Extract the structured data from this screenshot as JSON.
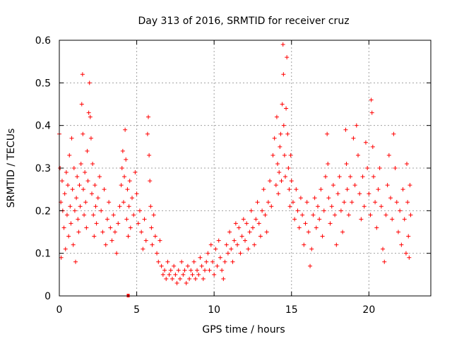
{
  "chart_data": {
    "type": "scatter",
    "title": "Day 313 of 2016, SRMTID for receiver cruz",
    "xlabel": "GPS time / hours",
    "ylabel": "SRMTID / TECUs",
    "xlim": [
      0,
      24
    ],
    "ylim": [
      0,
      0.6
    ],
    "xticks": [
      0,
      5,
      10,
      15,
      20
    ],
    "xtick_labels": [
      "0",
      "5",
      "10",
      "15",
      "20"
    ],
    "yticks": [
      0,
      0.1,
      0.2,
      0.3,
      0.4,
      0.5,
      0.6
    ],
    "ytick_labels": [
      "0",
      "0.1",
      "0.2",
      "0.3",
      "0.4",
      "0.5",
      "0.6"
    ],
    "grid": true,
    "marker": "+",
    "color": "#ff0000",
    "series": [
      {
        "name": "SRMTID",
        "points": [
          [
            0.0,
            0.38
          ],
          [
            0.05,
            0.3
          ],
          [
            0.1,
            0.22
          ],
          [
            0.12,
            0.09
          ],
          [
            0.18,
            0.27
          ],
          [
            0.22,
            0.2
          ],
          [
            0.3,
            0.16
          ],
          [
            0.35,
            0.24
          ],
          [
            0.4,
            0.11
          ],
          [
            0.45,
            0.29
          ],
          [
            0.5,
            0.19
          ],
          [
            0.55,
            0.26
          ],
          [
            0.6,
            0.14
          ],
          [
            0.65,
            0.33
          ],
          [
            0.7,
            0.21
          ],
          [
            0.75,
            0.17
          ],
          [
            0.8,
            0.37
          ],
          [
            0.85,
            0.25
          ],
          [
            0.9,
            0.12
          ],
          [
            0.95,
            0.3
          ],
          [
            1.0,
            0.2
          ],
          [
            1.05,
            0.08
          ],
          [
            1.1,
            0.23
          ],
          [
            1.15,
            0.28
          ],
          [
            1.2,
            0.18
          ],
          [
            1.25,
            0.15
          ],
          [
            1.3,
            0.26
          ],
          [
            1.35,
            0.21
          ],
          [
            1.4,
            0.31
          ],
          [
            1.45,
            0.45
          ],
          [
            1.5,
            0.52
          ],
          [
            1.52,
            0.38
          ],
          [
            1.55,
            0.25
          ],
          [
            1.6,
            0.19
          ],
          [
            1.65,
            0.29
          ],
          [
            1.7,
            0.22
          ],
          [
            1.75,
            0.16
          ],
          [
            1.8,
            0.34
          ],
          [
            1.85,
            0.27
          ],
          [
            1.9,
            0.43
          ],
          [
            1.95,
            0.5
          ],
          [
            2.0,
            0.42
          ],
          [
            2.05,
            0.37
          ],
          [
            2.1,
            0.24
          ],
          [
            2.15,
            0.31
          ],
          [
            2.2,
            0.19
          ],
          [
            2.25,
            0.14
          ],
          [
            2.3,
            0.26
          ],
          [
            2.35,
            0.21
          ],
          [
            2.4,
            0.17
          ],
          [
            2.5,
            0.23
          ],
          [
            2.6,
            0.28
          ],
          [
            2.7,
            0.2
          ],
          [
            2.8,
            0.15
          ],
          [
            2.9,
            0.25
          ],
          [
            3.0,
            0.12
          ],
          [
            3.1,
            0.18
          ],
          [
            3.2,
            0.22
          ],
          [
            3.3,
            0.16
          ],
          [
            3.4,
            0.13
          ],
          [
            3.5,
            0.19
          ],
          [
            3.6,
            0.15
          ],
          [
            3.7,
            0.1
          ],
          [
            3.8,
            0.17
          ],
          [
            3.9,
            0.21
          ],
          [
            4.0,
            0.26
          ],
          [
            4.05,
            0.3
          ],
          [
            4.1,
            0.34
          ],
          [
            4.15,
            0.22
          ],
          [
            4.2,
            0.28
          ],
          [
            4.25,
            0.39
          ],
          [
            4.3,
            0.32
          ],
          [
            4.35,
            0.18
          ],
          [
            4.4,
            0.25
          ],
          [
            4.45,
            0.14
          ],
          [
            4.5,
            0.21
          ],
          [
            4.55,
            0.27
          ],
          [
            4.6,
            0.16
          ],
          [
            4.7,
            0.23
          ],
          [
            4.8,
            0.19
          ],
          [
            4.9,
            0.29
          ],
          [
            5.0,
            0.24
          ],
          [
            5.1,
            0.17
          ],
          [
            5.2,
            0.2
          ],
          [
            5.3,
            0.15
          ],
          [
            5.4,
            0.11
          ],
          [
            5.5,
            0.18
          ],
          [
            5.6,
            0.13
          ],
          [
            5.7,
            0.38
          ],
          [
            5.75,
            0.42
          ],
          [
            5.8,
            0.33
          ],
          [
            5.85,
            0.27
          ],
          [
            5.9,
            0.21
          ],
          [
            5.95,
            0.16
          ],
          [
            6.0,
            0.12
          ],
          [
            6.1,
            0.19
          ],
          [
            6.2,
            0.14
          ],
          [
            6.3,
            0.1
          ],
          [
            6.4,
            0.08
          ],
          [
            6.5,
            0.13
          ],
          [
            6.6,
            0.07
          ],
          [
            6.7,
            0.05
          ],
          [
            6.8,
            0.06
          ],
          [
            6.9,
            0.04
          ],
          [
            7.0,
            0.08
          ],
          [
            7.1,
            0.05
          ],
          [
            7.2,
            0.06
          ],
          [
            7.3,
            0.04
          ],
          [
            7.4,
            0.07
          ],
          [
            7.5,
            0.05
          ],
          [
            7.6,
            0.03
          ],
          [
            7.7,
            0.06
          ],
          [
            7.8,
            0.04
          ],
          [
            7.9,
            0.08
          ],
          [
            8.0,
            0.05
          ],
          [
            8.1,
            0.06
          ],
          [
            8.2,
            0.03
          ],
          [
            8.3,
            0.07
          ],
          [
            8.4,
            0.04
          ],
          [
            8.5,
            0.06
          ],
          [
            8.6,
            0.05
          ],
          [
            8.7,
            0.08
          ],
          [
            8.8,
            0.04
          ],
          [
            8.9,
            0.06
          ],
          [
            9.0,
            0.05
          ],
          [
            9.1,
            0.09
          ],
          [
            9.2,
            0.07
          ],
          [
            9.3,
            0.04
          ],
          [
            9.4,
            0.06
          ],
          [
            9.5,
            0.08
          ],
          [
            9.6,
            0.1
          ],
          [
            9.7,
            0.06
          ],
          [
            9.8,
            0.12
          ],
          [
            9.9,
            0.08
          ],
          [
            10.0,
            0.05
          ],
          [
            10.1,
            0.11
          ],
          [
            10.2,
            0.07
          ],
          [
            10.3,
            0.13
          ],
          [
            10.4,
            0.09
          ],
          [
            10.5,
            0.06
          ],
          [
            10.6,
            0.04
          ],
          [
            10.7,
            0.08
          ],
          [
            10.8,
            0.12
          ],
          [
            10.9,
            0.1
          ],
          [
            11.0,
            0.15
          ],
          [
            11.1,
            0.11
          ],
          [
            11.2,
            0.08
          ],
          [
            11.3,
            0.13
          ],
          [
            11.4,
            0.17
          ],
          [
            11.5,
            0.12
          ],
          [
            11.6,
            0.16
          ],
          [
            11.7,
            0.1
          ],
          [
            11.8,
            0.14
          ],
          [
            11.9,
            0.18
          ],
          [
            12.0,
            0.13
          ],
          [
            12.1,
            0.17
          ],
          [
            12.2,
            0.11
          ],
          [
            12.3,
            0.15
          ],
          [
            12.4,
            0.2
          ],
          [
            12.5,
            0.16
          ],
          [
            12.6,
            0.12
          ],
          [
            12.7,
            0.18
          ],
          [
            12.8,
            0.22
          ],
          [
            12.9,
            0.17
          ],
          [
            13.0,
            0.14
          ],
          [
            13.1,
            0.2
          ],
          [
            13.2,
            0.25
          ],
          [
            13.3,
            0.19
          ],
          [
            13.4,
            0.15
          ],
          [
            13.5,
            0.22
          ],
          [
            13.6,
            0.27
          ],
          [
            13.7,
            0.21
          ],
          [
            13.8,
            0.33
          ],
          [
            13.9,
            0.37
          ],
          [
            14.0,
            0.26
          ],
          [
            14.05,
            0.42
          ],
          [
            14.1,
            0.31
          ],
          [
            14.15,
            0.24
          ],
          [
            14.2,
            0.29
          ],
          [
            14.25,
            0.35
          ],
          [
            14.3,
            0.38
          ],
          [
            14.35,
            0.27
          ],
          [
            14.4,
            0.45
          ],
          [
            14.45,
            0.59
          ],
          [
            14.48,
            0.52
          ],
          [
            14.5,
            0.4
          ],
          [
            14.55,
            0.33
          ],
          [
            14.6,
            0.28
          ],
          [
            14.65,
            0.44
          ],
          [
            14.7,
            0.56
          ],
          [
            14.75,
            0.38
          ],
          [
            14.8,
            0.3
          ],
          [
            14.85,
            0.25
          ],
          [
            14.9,
            0.21
          ],
          [
            14.95,
            0.33
          ],
          [
            15.0,
            0.27
          ],
          [
            15.1,
            0.22
          ],
          [
            15.2,
            0.18
          ],
          [
            15.3,
            0.25
          ],
          [
            15.4,
            0.2
          ],
          [
            15.5,
            0.16
          ],
          [
            15.6,
            0.23
          ],
          [
            15.7,
            0.19
          ],
          [
            15.8,
            0.12
          ],
          [
            15.9,
            0.17
          ],
          [
            16.0,
            0.22
          ],
          [
            16.1,
            0.15
          ],
          [
            16.2,
            0.07
          ],
          [
            16.3,
            0.11
          ],
          [
            16.4,
            0.19
          ],
          [
            16.5,
            0.23
          ],
          [
            16.6,
            0.16
          ],
          [
            16.7,
            0.21
          ],
          [
            16.8,
            0.18
          ],
          [
            16.9,
            0.25
          ],
          [
            17.0,
            0.14
          ],
          [
            17.1,
            0.2
          ],
          [
            17.2,
            0.28
          ],
          [
            17.3,
            0.38
          ],
          [
            17.35,
            0.31
          ],
          [
            17.4,
            0.23
          ],
          [
            17.5,
            0.17
          ],
          [
            17.6,
            0.21
          ],
          [
            17.7,
            0.26
          ],
          [
            17.8,
            0.19
          ],
          [
            17.9,
            0.12
          ],
          [
            18.0,
            0.24
          ],
          [
            18.1,
            0.28
          ],
          [
            18.2,
            0.2
          ],
          [
            18.3,
            0.15
          ],
          [
            18.4,
            0.22
          ],
          [
            18.5,
            0.39
          ],
          [
            18.55,
            0.31
          ],
          [
            18.6,
            0.25
          ],
          [
            18.7,
            0.19
          ],
          [
            18.8,
            0.28
          ],
          [
            18.9,
            0.22
          ],
          [
            19.0,
            0.37
          ],
          [
            19.1,
            0.26
          ],
          [
            19.2,
            0.4
          ],
          [
            19.3,
            0.33
          ],
          [
            19.4,
            0.24
          ],
          [
            19.5,
            0.18
          ],
          [
            19.6,
            0.28
          ],
          [
            19.7,
            0.21
          ],
          [
            19.8,
            0.36
          ],
          [
            19.9,
            0.3
          ],
          [
            20.0,
            0.24
          ],
          [
            20.1,
            0.19
          ],
          [
            20.15,
            0.46
          ],
          [
            20.2,
            0.43
          ],
          [
            20.25,
            0.35
          ],
          [
            20.3,
            0.28
          ],
          [
            20.4,
            0.22
          ],
          [
            20.5,
            0.16
          ],
          [
            20.6,
            0.25
          ],
          [
            20.7,
            0.3
          ],
          [
            20.8,
            0.21
          ],
          [
            20.9,
            0.11
          ],
          [
            21.0,
            0.08
          ],
          [
            21.1,
            0.19
          ],
          [
            21.2,
            0.26
          ],
          [
            21.3,
            0.33
          ],
          [
            21.4,
            0.23
          ],
          [
            21.5,
            0.18
          ],
          [
            21.6,
            0.38
          ],
          [
            21.7,
            0.3
          ],
          [
            21.8,
            0.22
          ],
          [
            21.9,
            0.15
          ],
          [
            22.0,
            0.2
          ],
          [
            22.1,
            0.12
          ],
          [
            22.2,
            0.25
          ],
          [
            22.3,
            0.18
          ],
          [
            22.4,
            0.1
          ],
          [
            22.45,
            0.31
          ],
          [
            22.5,
            0.22
          ],
          [
            22.55,
            0.14
          ],
          [
            22.6,
            0.09
          ],
          [
            22.65,
            0.26
          ],
          [
            22.7,
            0.19
          ]
        ],
        "extra_markers": [
          [
            4.45,
            0.0
          ]
        ]
      }
    ]
  }
}
